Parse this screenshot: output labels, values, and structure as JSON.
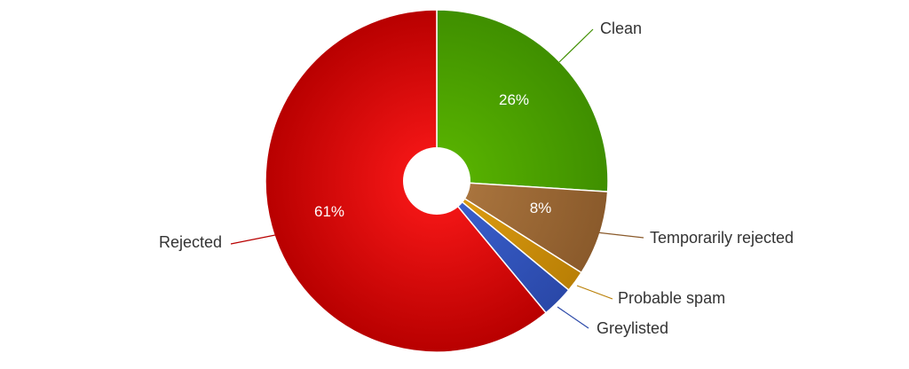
{
  "chart_data": {
    "type": "pie",
    "style": "donut",
    "title": "",
    "legend": "none",
    "slices": [
      {
        "name": "Clean",
        "value": 26,
        "percent_label": "26%",
        "color": "#5cb800",
        "color_dark": "#3f8f00"
      },
      {
        "name": "Temporarily rejected",
        "value": 8,
        "percent_label": "8%",
        "color": "#b07a42",
        "color_dark": "#8a5a2b"
      },
      {
        "name": "Probable spam",
        "value": 2,
        "percent_label": "",
        "color": "#e3a114",
        "color_dark": "#b97f05"
      },
      {
        "name": "Greylisted",
        "value": 3,
        "percent_label": "",
        "color": "#3c64d4",
        "color_dark": "#2a48a8"
      },
      {
        "name": "Rejected",
        "value": 61,
        "percent_label": "61%",
        "color": "#ff1a1a",
        "color_dark": "#b80000"
      }
    ]
  }
}
